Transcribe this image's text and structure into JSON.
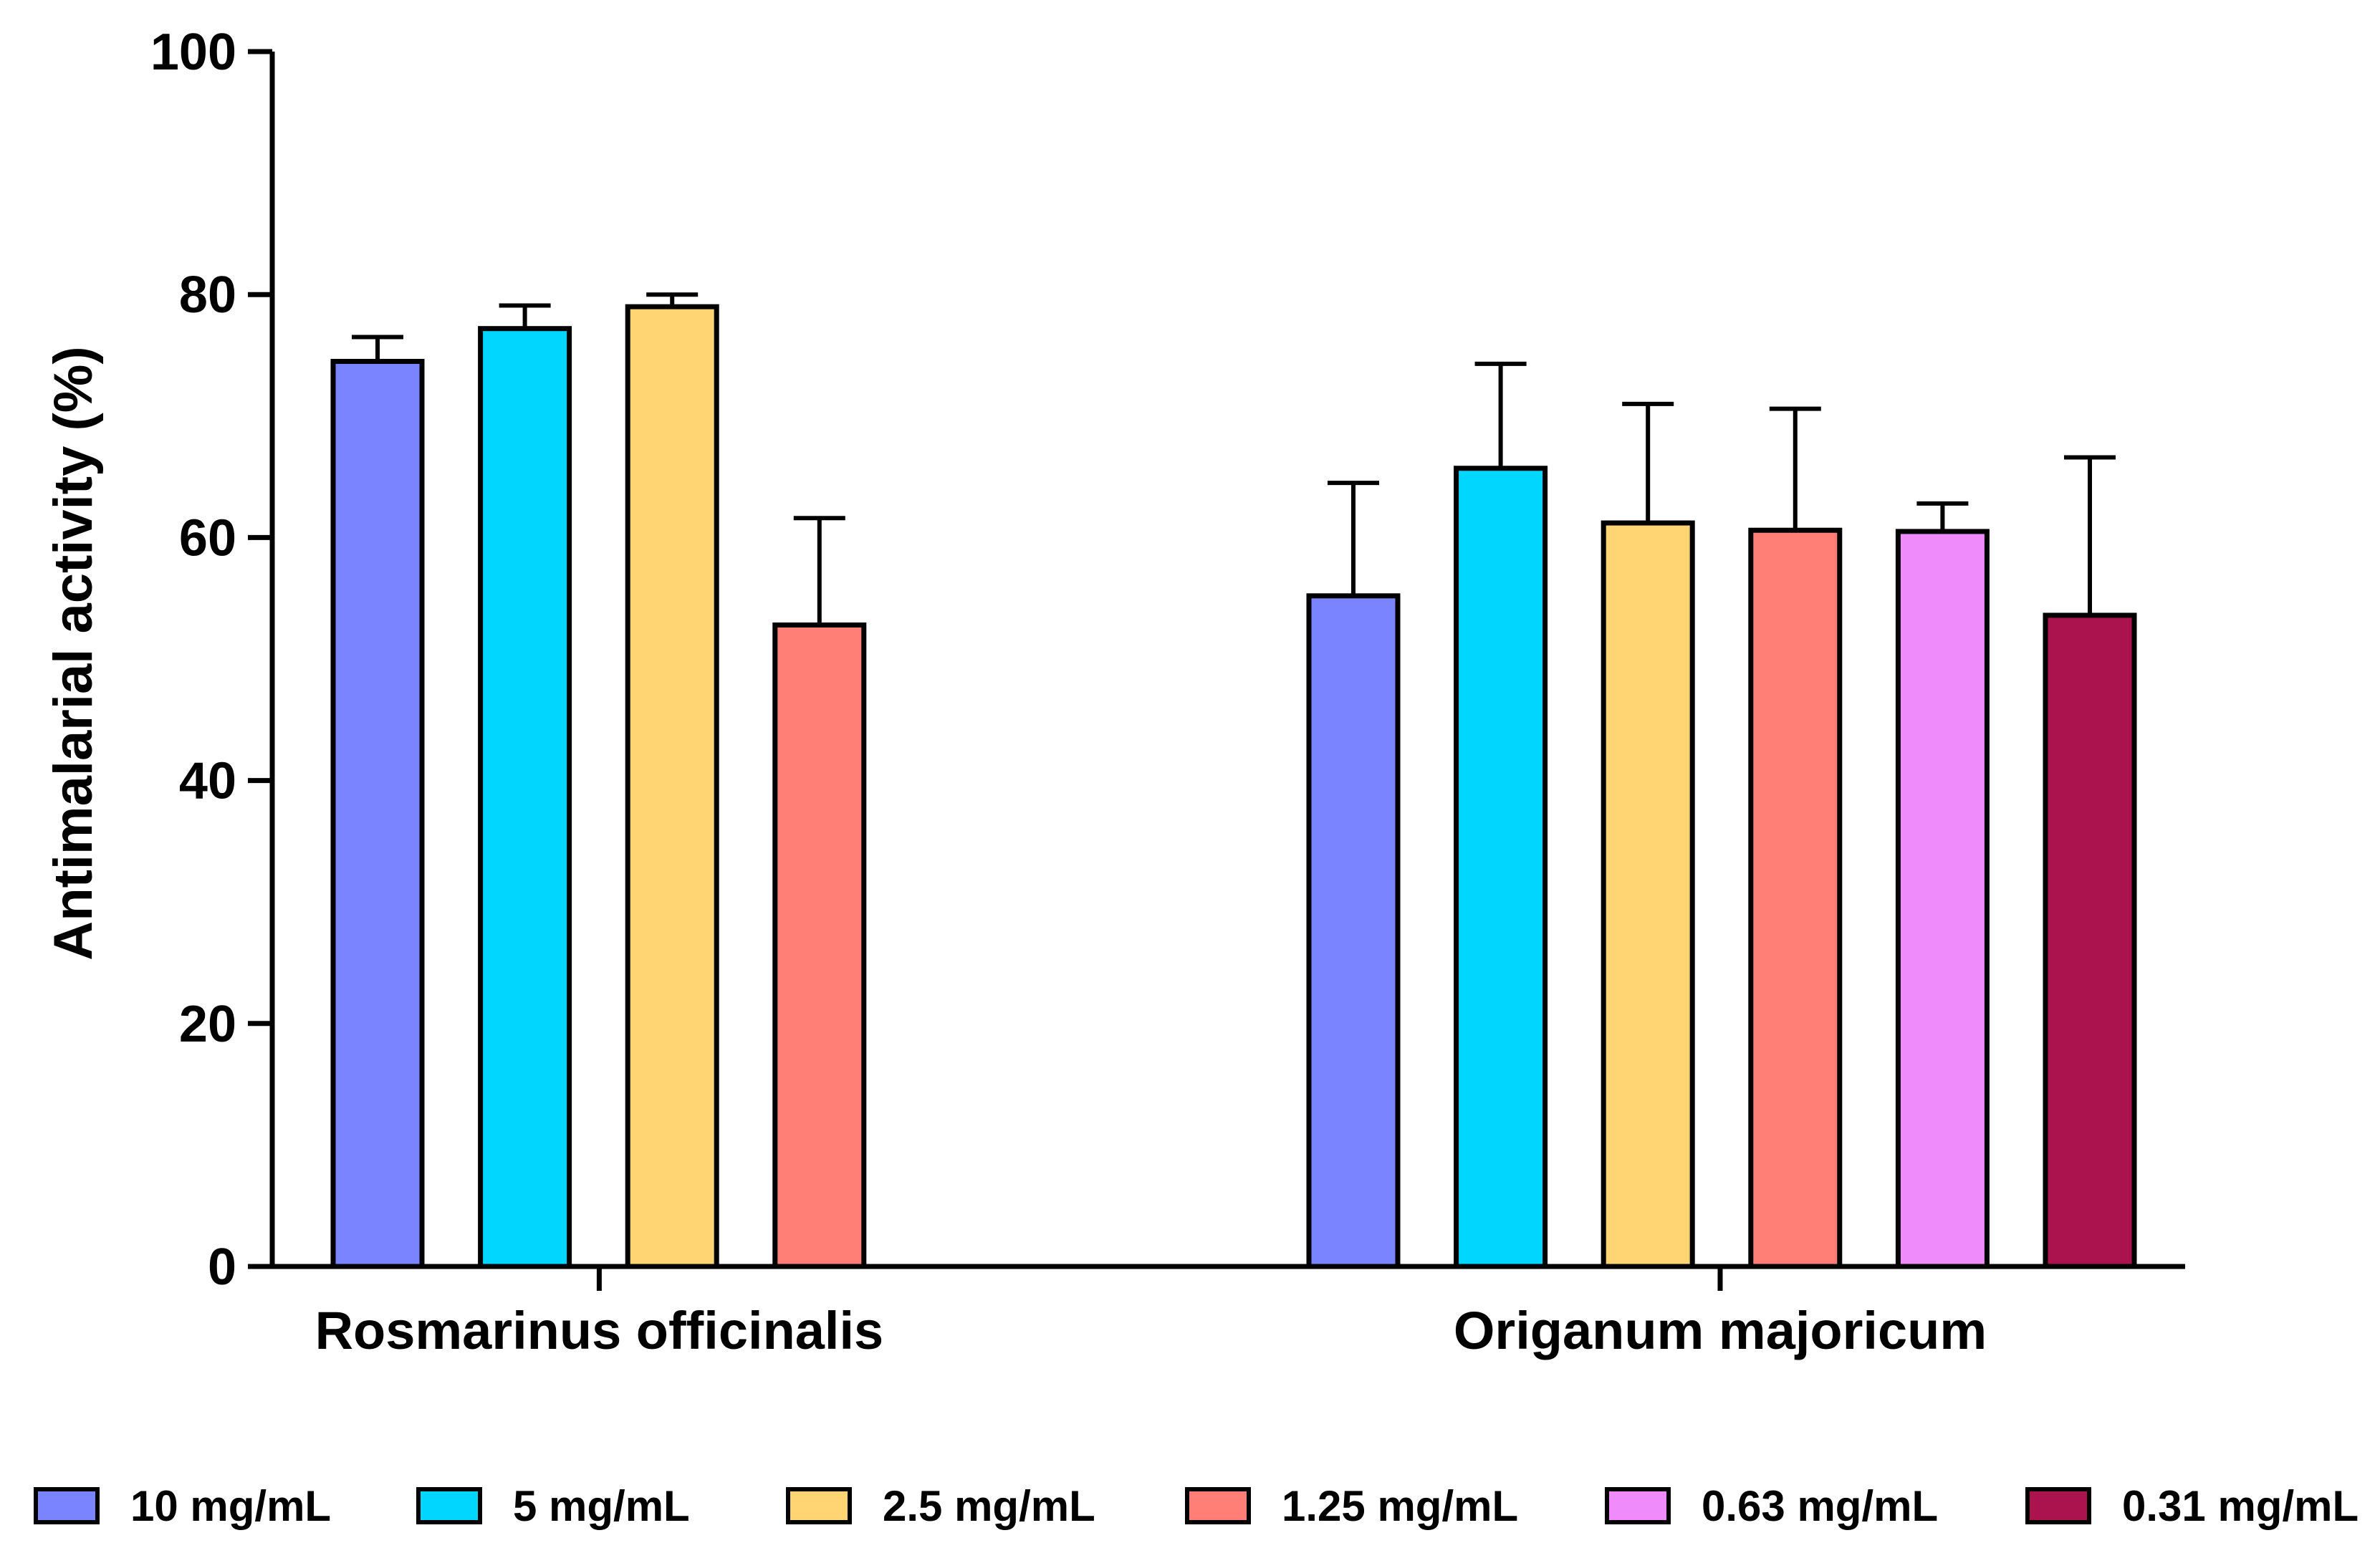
{
  "chart_data": {
    "type": "bar",
    "title": "",
    "xlabel": "",
    "ylabel": "Antimalarial activity (%)",
    "ylim": [
      0,
      100
    ],
    "yticks": [
      0,
      20,
      40,
      60,
      80,
      100
    ],
    "ytick_labels": [
      "0",
      "20",
      "40",
      "60",
      "80",
      "100"
    ],
    "grid": false,
    "legend_position": "bottom",
    "categories": [
      "Rosmarinus officinalis",
      "Origanum majoricum"
    ],
    "series": [
      {
        "name": "10 mg/mL",
        "color": "#7b84ff",
        "values": [
          74.5,
          55.2
        ],
        "errors": [
          2.0,
          9.3
        ]
      },
      {
        "name": "5 mg/mL",
        "color": "#00d6ff",
        "values": [
          77.2,
          65.7
        ],
        "errors": [
          1.9,
          8.6
        ]
      },
      {
        "name": "2.5 mg/mL",
        "color": "#ffd472",
        "values": [
          79.0,
          61.2
        ],
        "errors": [
          1.0,
          9.8
        ]
      },
      {
        "name": "1.25 mg/mL",
        "color": "#ff7f77",
        "values": [
          52.8,
          60.6
        ],
        "errors": [
          8.8,
          10.0
        ]
      },
      {
        "name": "0.63 mg/mL",
        "color": "#f08bfb",
        "values": [
          null,
          60.5
        ],
        "errors": [
          null,
          2.3
        ]
      },
      {
        "name": "0.31 mg/mL",
        "color": "#ab134e",
        "values": [
          null,
          53.6
        ],
        "errors": [
          null,
          13.0
        ]
      }
    ]
  }
}
